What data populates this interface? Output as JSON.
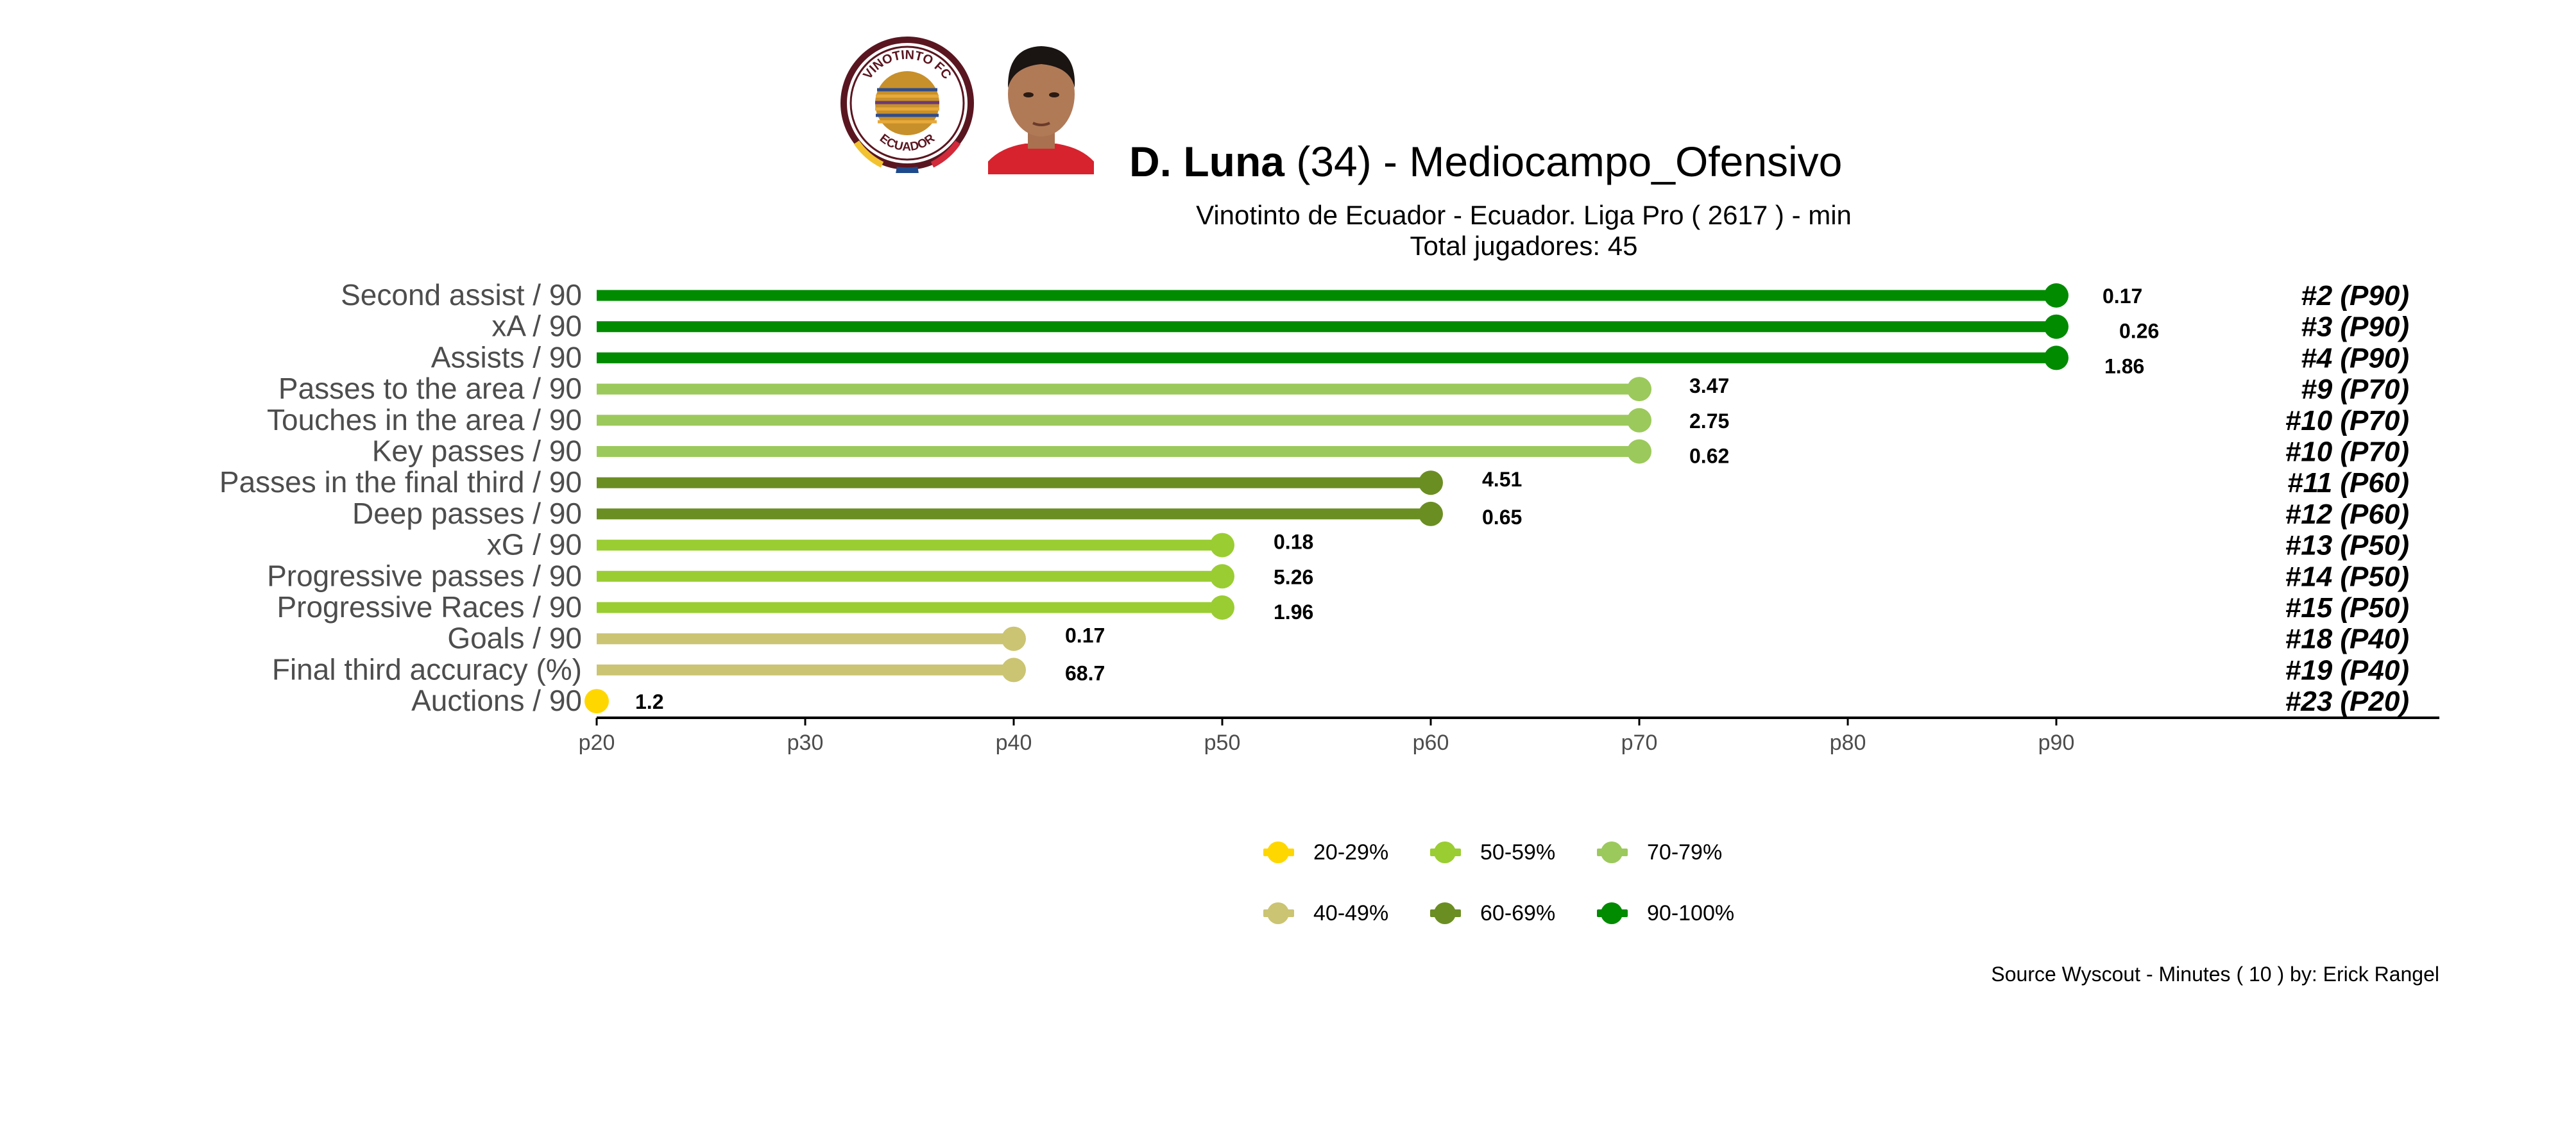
{
  "header": {
    "player_name": "D. Luna",
    "player_age": "(34)",
    "title_separator": " -  ",
    "position": "Mediocampo_Ofensivo",
    "subtitle": "Vinotinto de Ecuador  -  Ecuador. Liga Pro  ( 2617 ) - min",
    "total_players": "Total jugadores:  45",
    "club_logo_text_top": "VINOTINTO FC",
    "club_logo_text_bottom": "ECUADOR"
  },
  "footer": {
    "source": "Source Wyscout - Minutes ( 10 ) by: Erick Rangel"
  },
  "colors": {
    "p20": "#FFD700",
    "p40": "#CBC472",
    "p50": "#9ACD32",
    "p60": "#6B8E23",
    "p70": "#9CC95C",
    "p90": "#008B00",
    "axis": "#000000",
    "label": "#4D4D4D"
  },
  "legend": [
    {
      "label": "20-29%",
      "color": "#FFD700"
    },
    {
      "label": "50-59%",
      "color": "#9ACD32"
    },
    {
      "label": "70-79%",
      "color": "#9CC95C"
    },
    {
      "label": "40-49%",
      "color": "#CBC472"
    },
    {
      "label": "60-69%",
      "color": "#6B8E23"
    },
    {
      "label": "90-100%",
      "color": "#008B00"
    }
  ],
  "chart_data": {
    "type": "lollipop",
    "x_tick_labels": [
      "p20",
      "p30",
      "p40",
      "p50",
      "p60",
      "p70",
      "p80",
      "p90"
    ],
    "x_ticks": [
      20,
      30,
      40,
      50,
      60,
      70,
      80,
      90
    ],
    "xlim": [
      20,
      109
    ],
    "grid": false,
    "legend_position": "bottom",
    "rows": [
      {
        "metric": "Second assist / 90",
        "percentile": 90,
        "value": "0.17",
        "rank": "#2 (P90)",
        "color": "#008B00"
      },
      {
        "metric": "xA / 90",
        "percentile": 90,
        "value": "0.26",
        "rank": "#3 (P90)",
        "color": "#008B00"
      },
      {
        "metric": "Assists / 90",
        "percentile": 90,
        "value": "1.86",
        "rank": "#4 (P90)",
        "color": "#008B00"
      },
      {
        "metric": "Passes to the area / 90",
        "percentile": 70,
        "value": "3.47",
        "rank": "#9 (P70)",
        "color": "#9CC95C"
      },
      {
        "metric": "Touches in the area / 90",
        "percentile": 70,
        "value": "2.75",
        "rank": "#10 (P70)",
        "color": "#9CC95C"
      },
      {
        "metric": "Key passes / 90",
        "percentile": 70,
        "value": "0.62",
        "rank": "#10 (P70)",
        "color": "#9CC95C"
      },
      {
        "metric": "Passes in the final third / 90",
        "percentile": 60,
        "value": "4.51",
        "rank": "#11 (P60)",
        "color": "#6B8E23"
      },
      {
        "metric": "Deep passes / 90",
        "percentile": 60,
        "value": "0.65",
        "rank": "#12 (P60)",
        "color": "#6B8E23"
      },
      {
        "metric": "xG / 90",
        "percentile": 50,
        "value": "0.18",
        "rank": "#13 (P50)",
        "color": "#9ACD32"
      },
      {
        "metric": "Progressive passes / 90",
        "percentile": 50,
        "value": "5.26",
        "rank": "#14 (P50)",
        "color": "#9ACD32"
      },
      {
        "metric": "Progressive Races / 90",
        "percentile": 50,
        "value": "1.96",
        "rank": "#15 (P50)",
        "color": "#9ACD32"
      },
      {
        "metric": "Goals / 90",
        "percentile": 40,
        "value": "0.17",
        "rank": "#18 (P40)",
        "color": "#CBC472"
      },
      {
        "metric": "Final third accuracy (%)",
        "percentile": 40,
        "value": "68.7",
        "rank": "#19 (P40)",
        "color": "#CBC472"
      },
      {
        "metric": "Auctions / 90",
        "percentile": 20,
        "value": "1.2",
        "rank": "#23 (P20)",
        "color": "#FFD700"
      }
    ]
  }
}
